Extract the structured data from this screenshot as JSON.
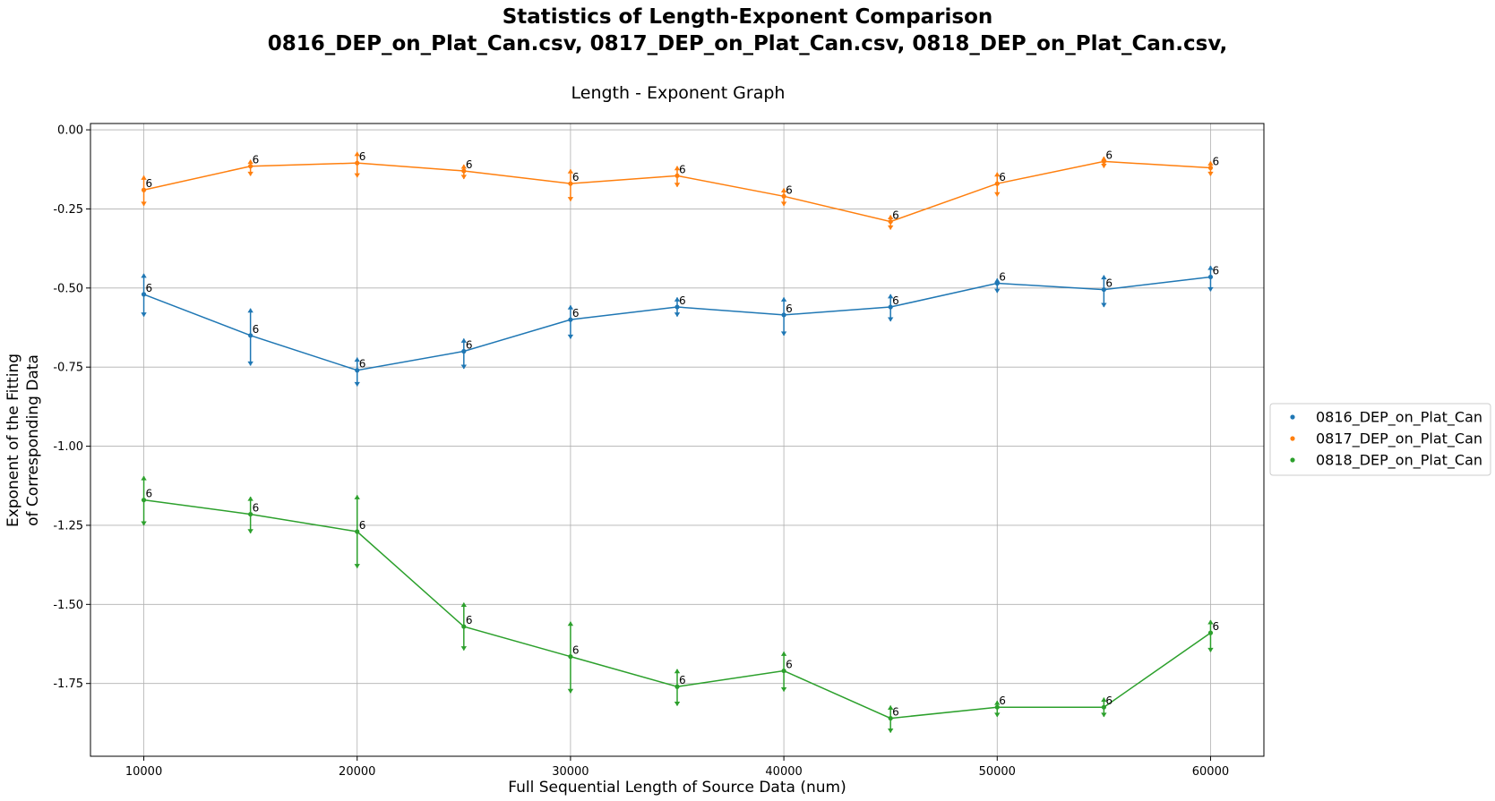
{
  "title": {
    "line1": "Statistics of  Length-Exponent Comparison",
    "line2": "0816_DEP_on_Plat_Can.csv, 0817_DEP_on_Plat_Can.csv, 0818_DEP_on_Plat_Can.csv,"
  },
  "chart_data": {
    "type": "line",
    "title": "Length - Exponent Graph",
    "xlabel": "Full Sequential Length of Source Data (num)",
    "ylabel_line1": "Exponent of the Fitting",
    "ylabel_line2": "of Corresponding Data",
    "xlim": [
      7500,
      62500
    ],
    "ylim": [
      -1.98,
      0.02
    ],
    "grid": true,
    "legend_position": "right, outside plot",
    "x_ticks": [
      10000,
      20000,
      30000,
      40000,
      50000,
      60000
    ],
    "x_tick_labels": [
      "10000",
      "20000",
      "30000",
      "40000",
      "50000",
      "60000"
    ],
    "y_ticks": [
      0,
      -0.25,
      -0.5,
      -0.75,
      -1.0,
      -1.25,
      -1.5,
      -1.75
    ],
    "y_tick_labels": [
      "0.00",
      "-0.25",
      "-0.50",
      "-0.75",
      "-1.00",
      "-1.25",
      "-1.50",
      "-1.75"
    ],
    "x": [
      10000,
      15000,
      20000,
      25000,
      30000,
      35000,
      40000,
      45000,
      50000,
      55000,
      60000
    ],
    "series": [
      {
        "name": "0816_DEP_on_Plat_Can",
        "color": "#1f77b4",
        "values": [
          -0.52,
          -0.65,
          -0.76,
          -0.7,
          -0.6,
          -0.56,
          -0.585,
          -0.56,
          -0.485,
          -0.505,
          -0.465
        ],
        "err_upper": [
          -0.455,
          -0.565,
          -0.72,
          -0.66,
          -0.555,
          -0.53,
          -0.53,
          -0.52,
          -0.47,
          -0.46,
          -0.43
        ],
        "err_lower": [
          -0.59,
          -0.745,
          -0.81,
          -0.755,
          -0.66,
          -0.59,
          -0.65,
          -0.605,
          -0.515,
          -0.56,
          -0.51
        ],
        "counts": [
          "6",
          "6",
          "6",
          "6",
          "6",
          "6",
          "6",
          "6",
          "6",
          "6",
          "6"
        ]
      },
      {
        "name": "0817_DEP_on_Plat_Can",
        "color": "#ff7f0e",
        "values": [
          -0.19,
          -0.115,
          -0.105,
          -0.13,
          -0.17,
          -0.145,
          -0.21,
          -0.29,
          -0.17,
          -0.1,
          -0.12
        ],
        "err_upper": [
          -0.145,
          -0.095,
          -0.07,
          -0.11,
          -0.125,
          -0.115,
          -0.185,
          -0.27,
          -0.135,
          -0.085,
          -0.1
        ],
        "err_lower": [
          -0.24,
          -0.145,
          -0.15,
          -0.155,
          -0.225,
          -0.18,
          -0.24,
          -0.315,
          -0.21,
          -0.12,
          -0.145
        ],
        "counts": [
          "6",
          "6",
          "6",
          "6",
          "6",
          "6",
          "6",
          "6",
          "6",
          "6",
          "6"
        ]
      },
      {
        "name": "0818_DEP_on_Plat_Can",
        "color": "#2ca02c",
        "values": [
          -1.17,
          -1.215,
          -1.27,
          -1.57,
          -1.665,
          -1.76,
          -1.71,
          -1.86,
          -1.825,
          -1.825,
          -1.59
        ],
        "err_upper": [
          -1.095,
          -1.16,
          -1.155,
          -1.495,
          -1.555,
          -1.705,
          -1.65,
          -1.82,
          -1.805,
          -1.795,
          -1.55
        ],
        "err_lower": [
          -1.25,
          -1.275,
          -1.385,
          -1.645,
          -1.78,
          -1.82,
          -1.775,
          -1.905,
          -1.855,
          -1.855,
          -1.65
        ],
        "counts": [
          "6",
          "6",
          "6",
          "6",
          "6",
          "6",
          "6",
          "6",
          "6",
          "6",
          "6"
        ]
      }
    ]
  }
}
